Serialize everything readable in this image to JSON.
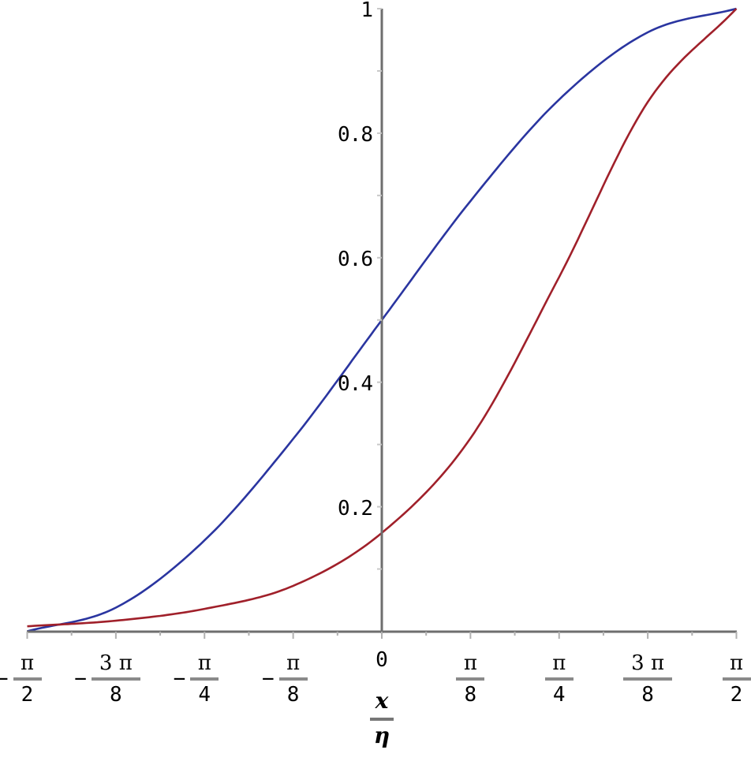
{
  "chart_data": {
    "type": "line",
    "title": "",
    "xlabel": "x/η",
    "xlabel_num": "x",
    "xlabel_den": "η",
    "ylabel": "",
    "xlim": [
      -1.5708,
      1.5708
    ],
    "ylim": [
      0,
      1
    ],
    "grid": false,
    "legend": "none",
    "x_ticks": [
      {
        "value": -1.5708,
        "sign": "−",
        "num": "π",
        "den": "2"
      },
      {
        "value": -1.1781,
        "sign": "−",
        "num": "3 π",
        "den": "8"
      },
      {
        "value": -0.7854,
        "sign": "−",
        "num": "π",
        "den": "4"
      },
      {
        "value": -0.3927,
        "sign": "−",
        "num": "π",
        "den": "8"
      },
      {
        "value": 0,
        "label": "0"
      },
      {
        "value": 0.3927,
        "sign": "",
        "num": "π",
        "den": "8"
      },
      {
        "value": 0.7854,
        "sign": "",
        "num": "π",
        "den": "4"
      },
      {
        "value": 1.1781,
        "sign": "",
        "num": "3 π",
        "den": "8"
      },
      {
        "value": 1.5708,
        "sign": "",
        "num": "π",
        "den": "2"
      }
    ],
    "y_ticks": [
      "0.2",
      "0.4",
      "0.6",
      "0.8",
      "1"
    ],
    "x": [
      -1.5708,
      -1.1781,
      -0.7854,
      -0.3927,
      0,
      0.3927,
      0.7854,
      1.1781,
      1.5708
    ],
    "series": [
      {
        "name": "blue curve",
        "color": "#2a35a0",
        "values": [
          0.0,
          0.038,
          0.146,
          0.309,
          0.5,
          0.691,
          0.854,
          0.962,
          1.0
        ]
      },
      {
        "name": "red curve",
        "color": "#a0202a",
        "values": [
          0.008,
          0.017,
          0.036,
          0.073,
          0.158,
          0.31,
          0.569,
          0.85,
          1.0
        ]
      }
    ]
  },
  "colors": {
    "axis": "#6e6e6e",
    "tick": "#b0b0b0",
    "blue": "#2a35a0",
    "red": "#a0202a"
  }
}
